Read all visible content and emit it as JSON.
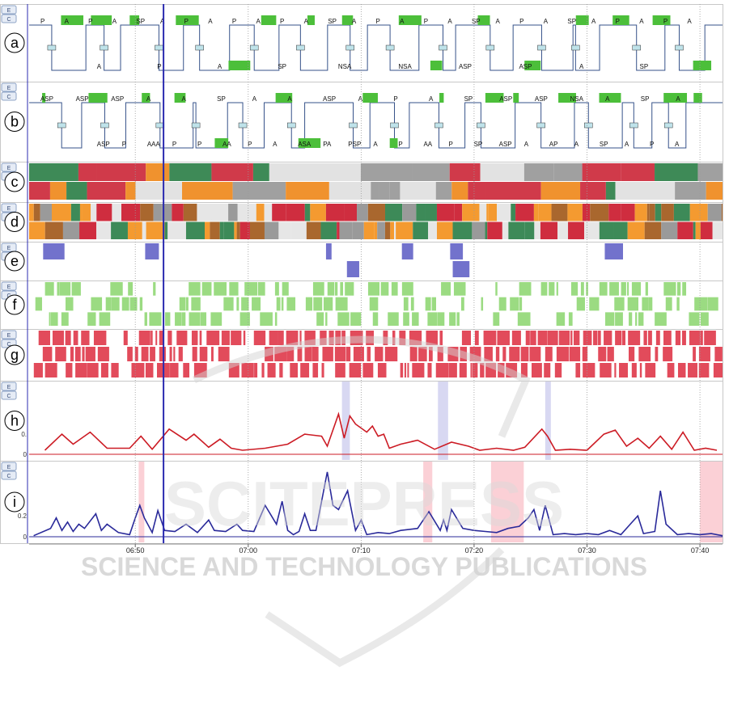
{
  "chart_data": {
    "type": "timeline",
    "x_axis": {
      "ticks": [
        "06:50",
        "07:00",
        "07:10",
        "07:20",
        "07:30",
        "07:40"
      ],
      "range_minutes": [
        40.6,
        102.0
      ],
      "origin": "06:00"
    },
    "cursor_time_min": 52.5,
    "panel_buttons": [
      "E",
      "C"
    ],
    "panels": [
      {
        "id": "a",
        "label": "a",
        "kind": "state-steps",
        "top_labels": [
          "P",
          "A",
          "P",
          "A",
          "SP",
          "A",
          "P",
          "A",
          "P",
          "A",
          "P",
          "A",
          "SP",
          "A",
          "P",
          "A",
          "P",
          "A",
          "SP",
          "A",
          "P",
          "A",
          "SP",
          "A",
          "P",
          "A",
          "P",
          "A"
        ],
        "bottom_labels": [
          "A",
          "P",
          "A",
          "SP",
          "NSA",
          "NSA",
          "ASP",
          "ASP",
          "A",
          "SP"
        ]
      },
      {
        "id": "b",
        "label": "b",
        "kind": "state-steps",
        "top_labels": [
          "ASP",
          "ASP",
          "ASP",
          "A",
          "A",
          "SP",
          "A",
          "A",
          "ASP",
          "A",
          "P",
          "A",
          "SP",
          "ASP",
          "ASP",
          "NSA",
          "A",
          "SP",
          "A"
        ],
        "bottom_labels": [
          "ASP",
          "P",
          "AAA",
          "P",
          "P",
          "AA",
          "P",
          "A",
          "ASA",
          "PA",
          "PSP",
          "A",
          "P",
          "AA",
          "P",
          "SP",
          "ASP",
          "A",
          "AP",
          "A",
          "SP",
          "A",
          "P",
          "A"
        ]
      },
      {
        "id": "c",
        "label": "c",
        "kind": "category-band",
        "colors": {
          "gray": "#a0a0a0",
          "green": "#3e8a57",
          "red": "#d03a4a",
          "orange": "#f0922e",
          "light": "#e2e2e2"
        }
      },
      {
        "id": "d",
        "label": "d",
        "kind": "category-band",
        "colors": {
          "orange": "#f49a30",
          "green": "#3d8a58",
          "gray": "#9a9a9a",
          "brown": "#a9672e",
          "red": "#cf2d3f",
          "light": "#e6e6e6"
        }
      },
      {
        "id": "e",
        "label": "e",
        "kind": "event-band",
        "color": "#7272cc"
      },
      {
        "id": "f",
        "label": "f",
        "kind": "event-band",
        "color": "#9bdb82"
      },
      {
        "id": "g",
        "label": "g",
        "kind": "event-band",
        "color": "#e24b5b"
      },
      {
        "id": "h",
        "label": "h",
        "kind": "line",
        "color": "#cc1b24",
        "y_ticks": [
          "0",
          "0."
        ],
        "highlight_color": "#b8b8e8",
        "highlights_min": [
          [
            68.3,
            69.0
          ],
          [
            76.8,
            77.7
          ],
          [
            86.3,
            86.8
          ]
        ],
        "x_min": [
          42.0,
          43.5,
          44.5,
          46.0,
          47.5,
          49.5,
          50.5,
          51.5,
          53.0,
          54.5,
          55.2,
          56.5,
          57.5,
          58.5,
          59.5,
          61.5,
          63.5,
          65.0,
          66.5,
          67.0,
          68.0,
          68.5,
          69.0,
          69.5,
          70.0,
          70.5,
          71.0,
          71.5,
          72.0,
          72.5,
          73.5,
          75.0,
          76.5,
          78.0,
          79.5,
          80.5,
          82.0,
          83.5,
          84.5,
          86.0,
          86.5,
          87.2,
          88.5,
          90.0,
          91.5,
          92.5,
          93.5,
          94.5,
          95.5,
          96.5,
          97.5,
          98.5,
          99.5,
          100.5,
          101.5
        ],
        "y": [
          0.04,
          0.2,
          0.1,
          0.22,
          0.06,
          0.06,
          0.18,
          0.05,
          0.25,
          0.14,
          0.2,
          0.07,
          0.15,
          0.06,
          0.04,
          0.06,
          0.1,
          0.2,
          0.18,
          0.08,
          0.4,
          0.16,
          0.38,
          0.3,
          0.26,
          0.22,
          0.28,
          0.18,
          0.2,
          0.06,
          0.1,
          0.14,
          0.05,
          0.12,
          0.08,
          0.04,
          0.06,
          0.04,
          0.07,
          0.25,
          0.18,
          0.04,
          0.05,
          0.04,
          0.2,
          0.24,
          0.08,
          0.16,
          0.06,
          0.18,
          0.05,
          0.22,
          0.04,
          0.06,
          0.04
        ]
      },
      {
        "id": "i",
        "label": "i",
        "kind": "line",
        "color": "#2a2a9a",
        "y_ticks": [
          "0",
          "0.2"
        ],
        "highlight_color": "#f7a9b5",
        "highlights_min": [
          [
            50.3,
            50.8
          ],
          [
            75.5,
            76.3
          ],
          [
            81.5,
            84.4
          ],
          [
            100.0,
            102.0
          ]
        ],
        "x_min": [
          41.0,
          42.5,
          43.0,
          43.5,
          44.0,
          44.5,
          45.0,
          45.5,
          46.5,
          47.0,
          47.5,
          48.5,
          49.5,
          50.0,
          50.4,
          50.8,
          51.5,
          52.0,
          52.6,
          53.5,
          54.5,
          55.5,
          56.5,
          57.0,
          58.0,
          59.0,
          59.5,
          60.5,
          61.5,
          62.5,
          63.0,
          63.5,
          64.0,
          64.5,
          65.0,
          65.5,
          66.0,
          67.0,
          67.5,
          68.0,
          68.8,
          69.5,
          70.0,
          70.5,
          71.5,
          72.5,
          73.5,
          75.0,
          76.0,
          77.0,
          77.3,
          77.6,
          78.0,
          79.0,
          80.0,
          81.0,
          82.0,
          83.0,
          84.0,
          84.8,
          85.3,
          85.8,
          86.3,
          87.0,
          88.0,
          89.0,
          90.0,
          91.0,
          92.0,
          93.0,
          94.0,
          94.5,
          95.0,
          96.0,
          96.5,
          97.0,
          98.0,
          99.0,
          100.0,
          101.0,
          102.0
        ],
        "y": [
          0.01,
          0.08,
          0.18,
          0.06,
          0.14,
          0.05,
          0.12,
          0.08,
          0.22,
          0.06,
          0.12,
          0.04,
          0.02,
          0.18,
          0.3,
          0.18,
          0.04,
          0.25,
          0.06,
          0.05,
          0.12,
          0.04,
          0.16,
          0.06,
          0.05,
          0.12,
          0.06,
          0.05,
          0.3,
          0.12,
          0.34,
          0.06,
          0.02,
          0.05,
          0.22,
          0.06,
          0.06,
          0.62,
          0.3,
          0.26,
          0.44,
          0.06,
          0.16,
          0.02,
          0.04,
          0.03,
          0.06,
          0.08,
          0.24,
          0.06,
          0.16,
          0.06,
          0.26,
          0.08,
          0.06,
          0.05,
          0.04,
          0.08,
          0.1,
          0.18,
          0.26,
          0.06,
          0.3,
          0.02,
          0.03,
          0.02,
          0.03,
          0.02,
          0.06,
          0.02,
          0.14,
          0.2,
          0.03,
          0.05,
          0.44,
          0.12,
          0.02,
          0.03,
          0.02,
          0.03,
          0.01
        ]
      }
    ],
    "watermark": {
      "line1": "SCITEPRESS",
      "line2": "SCIENCE AND TECHNOLOGY PUBLICATIONS"
    }
  }
}
